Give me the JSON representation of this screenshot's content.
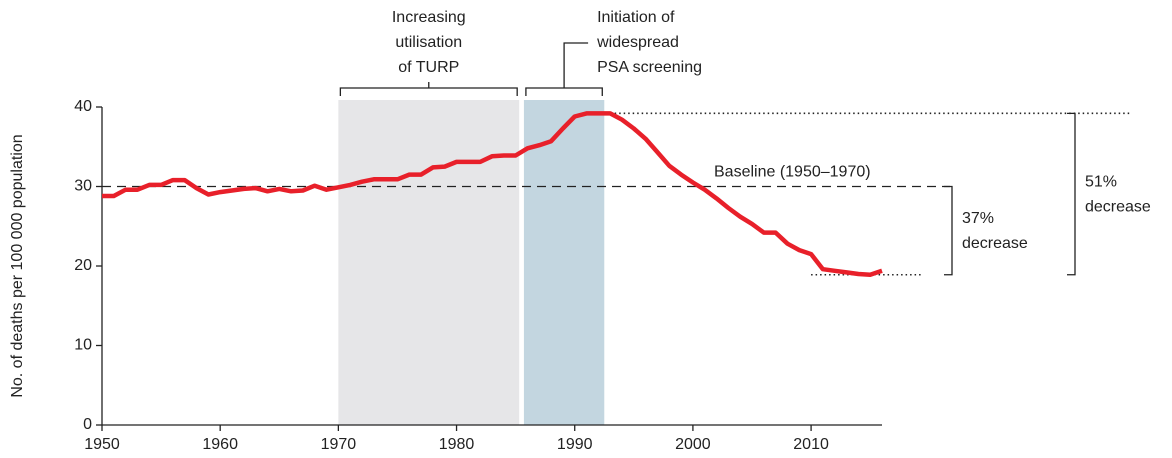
{
  "chart_data": {
    "type": "line",
    "y_label": "No. of deaths per 100 000 population",
    "x": [
      1950,
      1951,
      1952,
      1953,
      1954,
      1955,
      1956,
      1957,
      1958,
      1959,
      1960,
      1961,
      1962,
      1963,
      1964,
      1965,
      1966,
      1967,
      1968,
      1969,
      1970,
      1971,
      1972,
      1973,
      1974,
      1975,
      1976,
      1977,
      1978,
      1979,
      1980,
      1981,
      1982,
      1983,
      1984,
      1985,
      1986,
      1987,
      1988,
      1989,
      1990,
      1991,
      1992,
      1993,
      1994,
      1995,
      1996,
      1997,
      1998,
      1999,
      2000,
      2001,
      2002,
      2003,
      2004,
      2005,
      2006,
      2007,
      2008,
      2009,
      2010,
      2011,
      2012,
      2013,
      2014,
      2015,
      2016
    ],
    "values": [
      28.8,
      28.8,
      29.6,
      29.6,
      30.2,
      30.2,
      30.8,
      30.8,
      29.8,
      29.0,
      29.3,
      29.5,
      29.7,
      29.8,
      29.4,
      29.7,
      29.4,
      29.5,
      30.1,
      29.6,
      29.9,
      30.2,
      30.6,
      30.9,
      30.9,
      30.9,
      31.5,
      31.5,
      32.4,
      32.5,
      33.1,
      33.1,
      33.1,
      33.8,
      33.9,
      33.9,
      34.8,
      35.2,
      35.7,
      37.3,
      38.8,
      39.2,
      39.2,
      39.2,
      38.4,
      37.3,
      36.0,
      34.3,
      32.6,
      31.5,
      30.5,
      29.6,
      28.5,
      27.3,
      26.2,
      25.3,
      24.2,
      24.2,
      22.8,
      22.0,
      21.5,
      19.6,
      19.4,
      19.2,
      19.0,
      18.9,
      19.4
    ],
    "color": "#e8202a",
    "xlim": [
      1950,
      2016
    ],
    "ylim": [
      0,
      40
    ],
    "xticks": [
      1950,
      1960,
      1970,
      1980,
      1990,
      2000,
      2010
    ],
    "yticks": [
      0,
      10,
      20,
      30,
      40
    ],
    "shaded_regions": [
      {
        "x": [
          1970,
          1985.3
        ],
        "color": "#e6e6e8",
        "label": [
          "Increasing",
          "utilisation",
          "of TURP"
        ]
      },
      {
        "x": [
          1985.7,
          1992.5
        ],
        "color": "#c3d6e0",
        "label": [
          "Initiation of",
          "widespread",
          "PSA screening"
        ]
      }
    ],
    "baseline": {
      "y": 30,
      "label": "Baseline (1950–1970)"
    },
    "reference_lines": [
      {
        "y": 39.2,
        "x_start": 1993
      },
      {
        "y": 18.9,
        "x_start": 2010
      }
    ],
    "annotations": [
      {
        "from": 30,
        "to": 18.9,
        "label": [
          "37%",
          "decrease"
        ]
      },
      {
        "from": 39.2,
        "to": 18.9,
        "label": [
          "51%",
          "decrease"
        ]
      }
    ]
  }
}
